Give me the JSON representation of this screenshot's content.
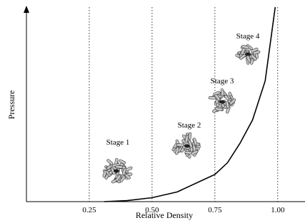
{
  "chart_data": {
    "type": "line",
    "x_label": "Relative Density",
    "y_label": "Pressure",
    "x": [
      0.31,
      0.4,
      0.5,
      0.6,
      0.7,
      0.75,
      0.8,
      0.85,
      0.9,
      0.95,
      0.99
    ],
    "values": [
      0,
      0.005,
      0.02,
      0.05,
      0.11,
      0.14,
      0.2,
      0.3,
      0.42,
      0.62,
      1.0
    ],
    "color": "#000000",
    "xlim": [
      0,
      1.1
    ],
    "ylim": [
      0,
      1
    ],
    "xticks": [
      0.25,
      {
        "value": 0.5,
        "label": "0.50"
      },
      0.75,
      {
        "value": 1,
        "label": "1.00"
      }
    ],
    "grid": true,
    "annotations": [
      "Stage 1",
      "Stage 2",
      "Stage 3",
      "Stage 4"
    ]
  }
}
